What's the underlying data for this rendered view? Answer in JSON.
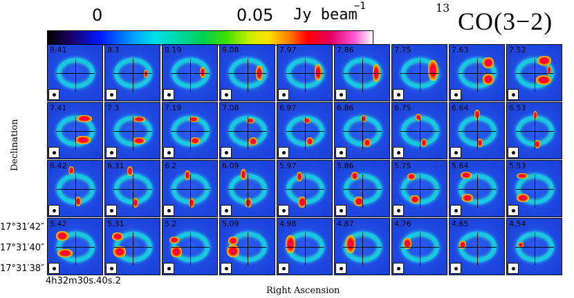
{
  "colorbar": {
    "min_label": "0",
    "max_label": "0.05",
    "unit": "Jy beam",
    "unit_exponent": "−1"
  },
  "line": {
    "isotope": "13",
    "name": "CO(3−2)"
  },
  "axes": {
    "xlabel": "Right Ascension",
    "ylabel": "Declination",
    "ra_tick": "4h32m30s.40s.2",
    "dec_ticks": [
      "17°31′42″",
      "17°31′40″",
      "17°31′38″"
    ]
  },
  "panels": [
    {
      "v": "8.41",
      "blobs": []
    },
    {
      "v": "8.3",
      "blobs": [
        [
          56,
          36,
          6,
          12
        ]
      ]
    },
    {
      "v": "8.19",
      "blobs": [
        [
          54,
          32,
          8,
          16
        ]
      ]
    },
    {
      "v": "8.08",
      "blobs": [
        [
          52,
          30,
          10,
          22
        ]
      ]
    },
    {
      "v": "7.97",
      "blobs": [
        [
          54,
          28,
          10,
          24
        ]
      ]
    },
    {
      "v": "7.86",
      "blobs": [
        [
          55,
          28,
          10,
          26
        ]
      ]
    },
    {
      "v": "7.75",
      "blobs": [
        [
          52,
          22,
          14,
          30
        ]
      ]
    },
    {
      "v": "7.63",
      "blobs": [
        [
          48,
          18,
          16,
          16
        ],
        [
          48,
          42,
          16,
          16
        ]
      ]
    },
    {
      "v": "7.52",
      "blobs": [
        [
          44,
          16,
          20,
          14
        ],
        [
          42,
          44,
          22,
          14
        ],
        [
          58,
          30,
          6,
          14
        ]
      ]
    },
    {
      "v": "7.41",
      "blobs": [
        [
          42,
          18,
          22,
          10
        ],
        [
          40,
          48,
          22,
          12
        ]
      ]
    },
    {
      "v": "7.3",
      "blobs": [
        [
          40,
          20,
          18,
          8
        ],
        [
          40,
          50,
          18,
          10
        ]
      ]
    },
    {
      "v": "7.19",
      "blobs": [
        [
          38,
          20,
          14,
          8
        ],
        [
          40,
          50,
          14,
          10
        ]
      ]
    },
    {
      "v": "7.08",
      "blobs": [
        [
          38,
          22,
          12,
          8
        ],
        [
          42,
          50,
          12,
          12
        ]
      ]
    },
    {
      "v": "6.97",
      "blobs": [
        [
          38,
          22,
          10,
          8
        ],
        [
          42,
          50,
          10,
          12
        ]
      ]
    },
    {
      "v": "6.86",
      "blobs": [
        [
          38,
          18,
          8,
          10
        ],
        [
          42,
          52,
          10,
          12
        ]
      ]
    },
    {
      "v": "6.75",
      "blobs": [
        [
          34,
          16,
          8,
          10
        ],
        [
          42,
          52,
          8,
          12
        ]
      ]
    },
    {
      "v": "6.64",
      "blobs": [
        [
          36,
          10,
          8,
          14
        ],
        [
          40,
          52,
          8,
          12
        ]
      ]
    },
    {
      "v": "6.53",
      "blobs": [
        [
          38,
          12,
          6,
          12
        ],
        [
          40,
          54,
          8,
          12
        ]
      ]
    },
    {
      "v": "6.42",
      "blobs": [
        [
          30,
          8,
          8,
          12
        ],
        [
          40,
          52,
          8,
          14
        ]
      ]
    },
    {
      "v": "6.31",
      "blobs": [
        [
          32,
          8,
          8,
          14
        ],
        [
          40,
          54,
          8,
          14
        ]
      ]
    },
    {
      "v": "6.2",
      "blobs": [
        [
          32,
          14,
          8,
          14
        ],
        [
          38,
          54,
          8,
          14
        ]
      ]
    },
    {
      "v": "6.09",
      "blobs": [
        [
          30,
          12,
          8,
          16
        ],
        [
          36,
          54,
          10,
          14
        ]
      ]
    },
    {
      "v": "5.97",
      "blobs": [
        [
          28,
          16,
          8,
          14
        ],
        [
          30,
          52,
          12,
          16
        ]
      ]
    },
    {
      "v": "5.86",
      "blobs": [
        [
          24,
          16,
          10,
          12
        ],
        [
          28,
          52,
          14,
          14
        ]
      ]
    },
    {
      "v": "5.75",
      "blobs": [
        [
          22,
          18,
          12,
          10
        ],
        [
          26,
          50,
          14,
          12
        ]
      ]
    },
    {
      "v": "5.64",
      "blobs": [
        [
          16,
          16,
          16,
          10
        ],
        [
          18,
          48,
          16,
          12
        ]
      ]
    },
    {
      "v": "5.53",
      "blobs": [
        [
          14,
          18,
          16,
          8
        ],
        [
          14,
          48,
          18,
          12
        ]
      ]
    },
    {
      "v": "5.42",
      "blobs": [
        [
          12,
          18,
          18,
          14
        ],
        [
          14,
          44,
          22,
          12
        ]
      ]
    },
    {
      "v": "5.31",
      "blobs": [
        [
          10,
          20,
          16,
          12
        ],
        [
          12,
          40,
          18,
          16
        ]
      ]
    },
    {
      "v": "5.2",
      "blobs": [
        [
          10,
          26,
          14,
          10
        ],
        [
          12,
          40,
          16,
          16
        ]
      ]
    },
    {
      "v": "5.09",
      "blobs": [
        [
          12,
          26,
          14,
          12
        ],
        [
          10,
          38,
          18,
          18
        ]
      ]
    },
    {
      "v": "4.98",
      "blobs": [
        [
          12,
          24,
          14,
          26
        ]
      ]
    },
    {
      "v": "4.87",
      "blobs": [
        [
          16,
          24,
          14,
          26
        ]
      ]
    },
    {
      "v": "4.76",
      "blobs": [
        [
          16,
          28,
          12,
          16
        ]
      ]
    },
    {
      "v": "4.65",
      "blobs": [
        [
          14,
          32,
          10,
          12
        ]
      ]
    },
    {
      "v": "4.54",
      "blobs": [
        [
          16,
          34,
          8,
          8
        ]
      ]
    }
  ]
}
